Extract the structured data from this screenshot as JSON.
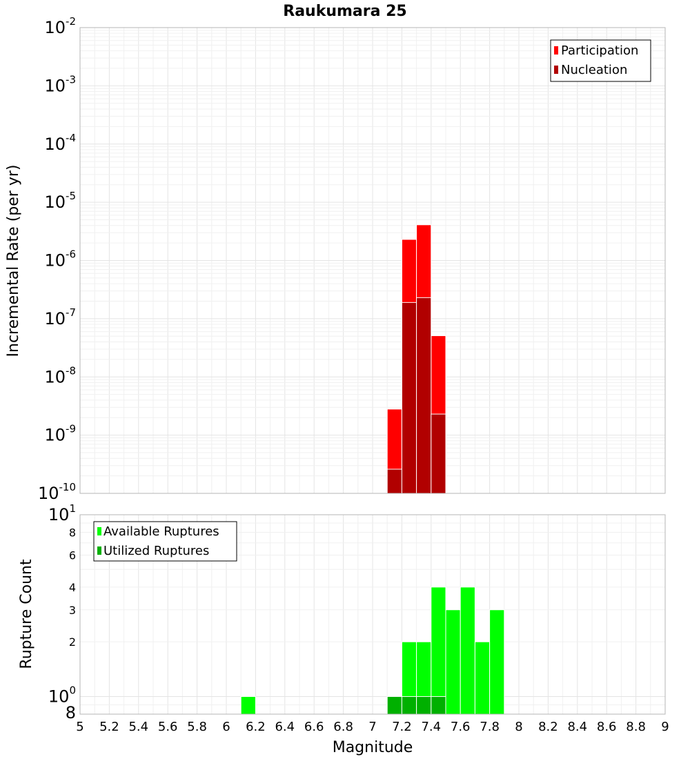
{
  "chart_data": [
    {
      "type": "bar",
      "title": "Raukumara 25",
      "xlabel": "Magnitude",
      "ylabel": "Incremental Rate (per yr)",
      "yscale": "log",
      "ylim": [
        1e-10,
        0.01
      ],
      "xlim": [
        5,
        9
      ],
      "grid": true,
      "legend_position": "top-right",
      "x_ticks": [
        "5",
        "5.2",
        "5.4",
        "5.6",
        "5.8",
        "6",
        "6.2",
        "6.4",
        "6.6",
        "6.8",
        "7",
        "7.2",
        "7.4",
        "7.6",
        "7.8",
        "8",
        "8.2",
        "8.4",
        "8.6",
        "8.8",
        "9"
      ],
      "y_ticks": [
        {
          "base": "10",
          "exp": "-2",
          "value": 0.01
        },
        {
          "base": "10",
          "exp": "-3",
          "value": 0.001
        },
        {
          "base": "10",
          "exp": "-4",
          "value": 0.0001
        },
        {
          "base": "10",
          "exp": "-5",
          "value": 1e-05
        },
        {
          "base": "10",
          "exp": "-6",
          "value": 1e-06
        },
        {
          "base": "10",
          "exp": "-7",
          "value": 1e-07
        },
        {
          "base": "10",
          "exp": "-8",
          "value": 1e-08
        },
        {
          "base": "10",
          "exp": "-9",
          "value": 1e-09
        },
        {
          "base": "10",
          "exp": "-10",
          "value": 1e-10
        }
      ],
      "bin_width": 0.1,
      "series": [
        {
          "name": "Participation",
          "color": "#ff0000",
          "points": [
            {
              "x": 7.15,
              "y": 2.8e-09
            },
            {
              "x": 7.25,
              "y": 2.3e-06
            },
            {
              "x": 7.35,
              "y": 4.1e-06
            },
            {
              "x": 7.45,
              "y": 5.1e-08
            }
          ]
        },
        {
          "name": "Nucleation",
          "color": "#b10000",
          "points": [
            {
              "x": 7.15,
              "y": 2.6e-10
            },
            {
              "x": 7.25,
              "y": 1.9e-07
            },
            {
              "x": 7.35,
              "y": 2.3e-07
            },
            {
              "x": 7.45,
              "y": 2.3e-09
            }
          ]
        }
      ]
    },
    {
      "type": "bar",
      "title": "",
      "xlabel": "Magnitude",
      "ylabel": "Rupture Count",
      "yscale": "log",
      "ylim": [
        0.8,
        10
      ],
      "xlim": [
        5,
        9
      ],
      "grid": true,
      "legend_position": "top-left",
      "x_ticks": [
        "5",
        "5.2",
        "5.4",
        "5.6",
        "5.8",
        "6",
        "6.2",
        "6.4",
        "6.6",
        "6.8",
        "7",
        "7.2",
        "7.4",
        "7.6",
        "7.8",
        "8",
        "8.2",
        "8.4",
        "8.6",
        "8.8",
        "9"
      ],
      "y_ticks": [
        {
          "base": "10",
          "exp": "1",
          "value": 10,
          "major": true
        },
        {
          "base": "8",
          "exp": "",
          "value": 8,
          "major": false
        },
        {
          "base": "6",
          "exp": "",
          "value": 6,
          "major": false
        },
        {
          "base": "4",
          "exp": "",
          "value": 4,
          "major": false
        },
        {
          "base": "3",
          "exp": "",
          "value": 3,
          "major": false
        },
        {
          "base": "2",
          "exp": "",
          "value": 2,
          "major": false
        },
        {
          "base": "10",
          "exp": "0",
          "value": 1,
          "major": true
        },
        {
          "base": "8",
          "exp": "",
          "value": 0.8,
          "major": true
        }
      ],
      "bin_width": 0.1,
      "series": [
        {
          "name": "Available Ruptures",
          "color": "#00ff00",
          "points": [
            {
              "x": 6.15,
              "y": 1
            },
            {
              "x": 7.15,
              "y": 1
            },
            {
              "x": 7.25,
              "y": 2
            },
            {
              "x": 7.35,
              "y": 2
            },
            {
              "x": 7.45,
              "y": 4
            },
            {
              "x": 7.55,
              "y": 3
            },
            {
              "x": 7.65,
              "y": 4
            },
            {
              "x": 7.75,
              "y": 2
            },
            {
              "x": 7.85,
              "y": 3
            }
          ]
        },
        {
          "name": "Utilized Ruptures",
          "color": "#00b000",
          "points": [
            {
              "x": 7.15,
              "y": 1
            },
            {
              "x": 7.25,
              "y": 1
            },
            {
              "x": 7.35,
              "y": 1
            },
            {
              "x": 7.45,
              "y": 1
            }
          ]
        }
      ]
    }
  ]
}
